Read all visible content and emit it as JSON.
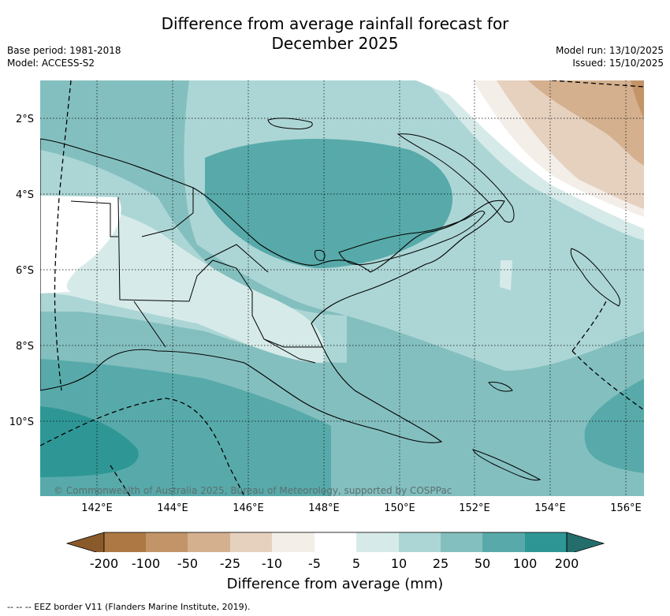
{
  "title_line1": "Difference from average rainfall forecast for",
  "title_line2": "December 2025",
  "left_meta": [
    "Base period: 1981-2018",
    "Model: ACCESS-S2"
  ],
  "right_meta": [
    "Model run: 13/10/2025",
    "Issued: 15/10/2025"
  ],
  "lat_labels": [
    "2°S",
    "4°S",
    "6°S",
    "8°S",
    "10°S"
  ],
  "lon_labels": [
    "142°E",
    "144°E",
    "146°E",
    "148°E",
    "150°E",
    "152°E",
    "154°E",
    "156°E"
  ],
  "copyright": "© Commonwealth of Australia 2025, Bureau of Meteorology, supported by COSPPac",
  "colorbar": {
    "title": "Difference from average (mm)",
    "labels": [
      "-200",
      "-100",
      "-50",
      "-25",
      "-10",
      "-5",
      "5",
      "10",
      "25",
      "50",
      "100",
      "200"
    ],
    "colors": {
      "lt_-200": "#8a5a2b",
      "-200_-100": "#ad7843",
      "-100_-50": "#c29467",
      "-50_-25": "#d4b08f",
      "-25_-10": "#e6d1bf",
      "-10_-5": "#f4eee9",
      "-5_5": "#ffffff",
      "5_10": "#d6ebe9",
      "10_25": "#acd6d5",
      "25_50": "#84bfbf",
      "50_100": "#58aaaa",
      "100_200": "#2e9796",
      "gt_200": "#236e6c"
    }
  },
  "footer": "-- --  -- EEZ border V11 (Flanders Marine Institute, 2019)."
}
